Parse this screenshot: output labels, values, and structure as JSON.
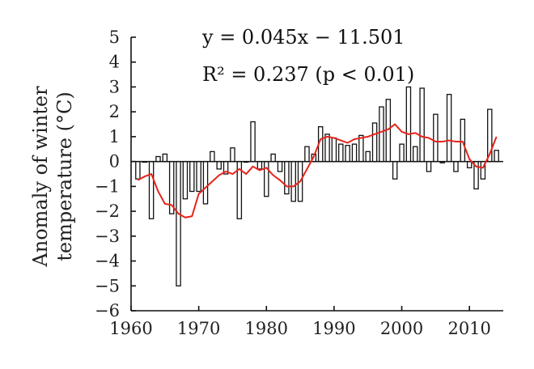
{
  "chart_data": {
    "type": "bar",
    "ylabel_line1": "Anomaly of winter",
    "ylabel_line2": "temperature (°C)",
    "xlabel": "",
    "xlim": [
      1960,
      2015
    ],
    "ylim": [
      -6,
      5
    ],
    "xticks": [
      1960,
      1970,
      1980,
      1990,
      2000,
      2010
    ],
    "yticks": [
      -6,
      -5,
      -4,
      -3,
      -2,
      -1,
      0,
      1,
      2,
      3,
      4,
      5
    ],
    "equation": "y = 0.045x − 11.501",
    "r2": "R² = 0.237 (p < 0.01)",
    "trend": {
      "slope": 0.045,
      "intercept": -11.501,
      "color": "#111111"
    },
    "smoothed_color": "#e8231a",
    "years": [
      1961,
      1962,
      1963,
      1964,
      1965,
      1966,
      1967,
      1968,
      1969,
      1970,
      1971,
      1972,
      1973,
      1974,
      1975,
      1976,
      1977,
      1978,
      1979,
      1980,
      1981,
      1982,
      1983,
      1984,
      1985,
      1986,
      1987,
      1988,
      1989,
      1990,
      1991,
      1992,
      1993,
      1994,
      1995,
      1996,
      1997,
      1998,
      1999,
      2000,
      2001,
      2002,
      2003,
      2004,
      2005,
      2006,
      2007,
      2008,
      2009,
      2010,
      2011,
      2012,
      2013,
      2014
    ],
    "values": [
      -0.7,
      0.0,
      -2.3,
      0.2,
      0.3,
      -2.1,
      -5.0,
      -1.5,
      -1.2,
      -1.2,
      -1.7,
      0.4,
      -0.3,
      -0.5,
      0.55,
      -2.3,
      0.0,
      1.6,
      -0.3,
      -1.4,
      0.3,
      -0.4,
      -1.3,
      -1.6,
      -1.6,
      0.6,
      0.3,
      1.4,
      1.1,
      0.95,
      0.7,
      0.65,
      0.7,
      1.05,
      0.4,
      1.55,
      2.2,
      2.5,
      -0.7,
      0.7,
      3.0,
      0.6,
      2.95,
      -0.4,
      1.9,
      -0.05,
      2.7,
      -0.4,
      1.7,
      -0.25,
      -1.1,
      -0.7,
      2.1,
      0.45
    ],
    "smoothed": {
      "years": [
        1961,
        1962,
        1963,
        1964,
        1965,
        1966,
        1967,
        1968,
        1969,
        1970,
        1971,
        1972,
        1973,
        1974,
        1975,
        1976,
        1977,
        1978,
        1979,
        1980,
        1981,
        1982,
        1983,
        1984,
        1985,
        1986,
        1987,
        1988,
        1989,
        1990,
        1991,
        1992,
        1993,
        1994,
        1995,
        1996,
        1997,
        1998,
        1999,
        2000,
        2001,
        2002,
        2003,
        2004,
        2005,
        2006,
        2007,
        2008,
        2009,
        2010,
        2011,
        2012,
        2013,
        2014
      ],
      "values": [
        -0.75,
        -0.6,
        -0.5,
        -1.2,
        -1.7,
        -1.75,
        -2.1,
        -2.25,
        -2.2,
        -1.3,
        -1.05,
        -0.8,
        -0.55,
        -0.4,
        -0.5,
        -0.3,
        -0.5,
        -0.2,
        -0.35,
        -0.25,
        -0.55,
        -0.75,
        -1.0,
        -1.0,
        -0.8,
        -0.3,
        0.2,
        0.9,
        1.0,
        0.95,
        0.85,
        0.75,
        0.9,
        0.95,
        1.0,
        1.1,
        1.2,
        1.3,
        1.5,
        1.2,
        1.1,
        1.15,
        1.0,
        0.95,
        0.8,
        0.8,
        0.85,
        0.8,
        0.8,
        0.1,
        -0.2,
        -0.25,
        0.3,
        1.0
      ]
    }
  }
}
